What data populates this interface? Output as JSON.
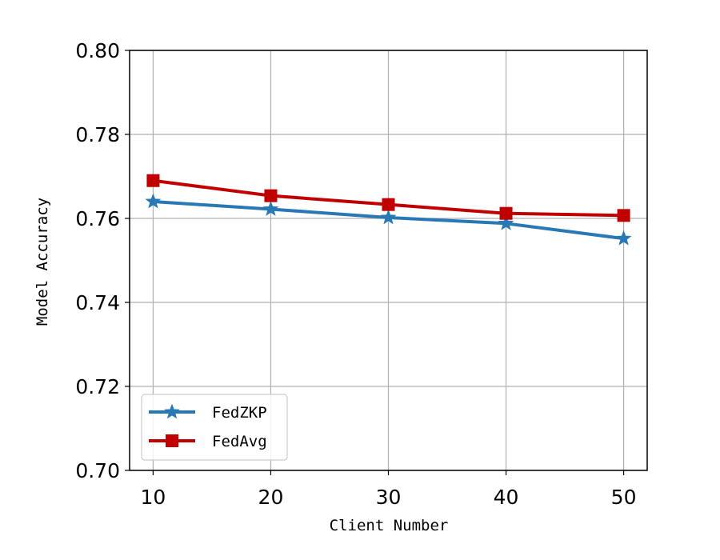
{
  "chart_data": {
    "type": "line",
    "title": "",
    "xlabel": "Client Number",
    "ylabel": "Model Accuracy",
    "x": [
      10,
      20,
      30,
      40,
      50
    ],
    "xlim": [
      8,
      52
    ],
    "ylim": [
      0.7,
      0.8
    ],
    "xticks": [
      10,
      20,
      30,
      40,
      50
    ],
    "yticks": [
      0.7,
      0.72,
      0.74,
      0.76,
      0.78,
      0.8
    ],
    "ytick_labels": [
      "0.70",
      "0.72",
      "0.74",
      "0.76",
      "0.78",
      "0.80"
    ],
    "grid": true,
    "legend_position": "lower-left",
    "series": [
      {
        "name": "FedZKP",
        "color": "#2878b5",
        "marker": "star",
        "values": [
          0.764,
          0.7622,
          0.7602,
          0.7588,
          0.7552
        ]
      },
      {
        "name": "FedAvg",
        "color": "#c00000",
        "marker": "square",
        "values": [
          0.769,
          0.7654,
          0.7633,
          0.7612,
          0.7607
        ]
      }
    ]
  }
}
